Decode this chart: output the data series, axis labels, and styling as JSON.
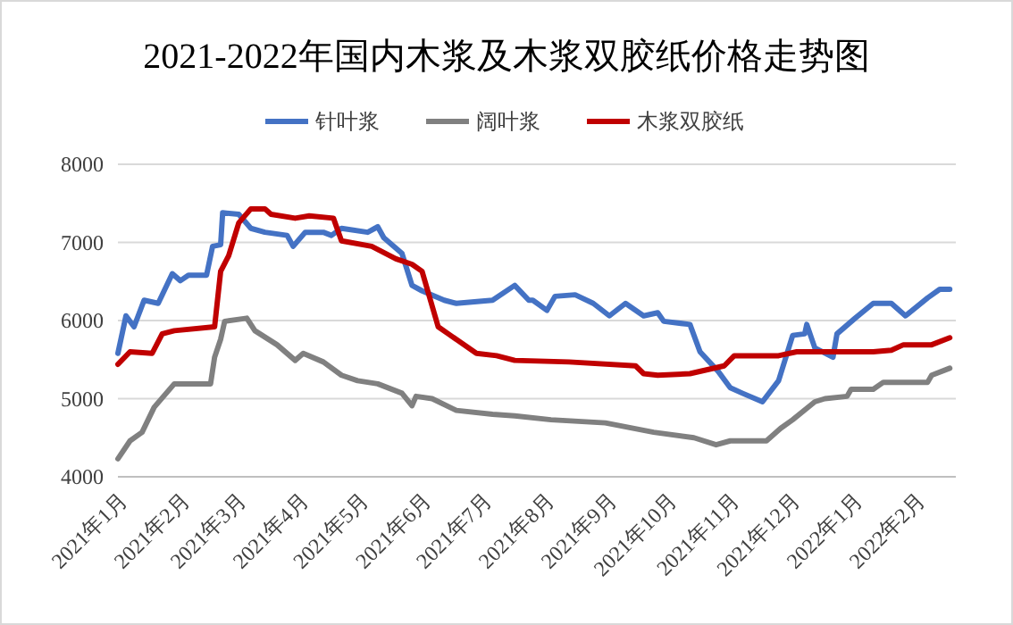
{
  "chart_data": {
    "type": "line",
    "title": "2021-2022年国内木浆及木浆双胶纸价格走势图",
    "legend": "top",
    "grid": "y",
    "marker": "none",
    "line_style": "solid",
    "xlim": [
      "2021-01-01",
      "2022-02-21"
    ],
    "xticks": [
      {
        "value": "2021-01-01",
        "label": "2021年1月"
      },
      {
        "value": "2021-02-01",
        "label": "2021年2月"
      },
      {
        "value": "2021-03-01",
        "label": "2021年3月"
      },
      {
        "value": "2021-04-01",
        "label": "2021年4月"
      },
      {
        "value": "2021-05-01",
        "label": "2021年5月"
      },
      {
        "value": "2021-06-01",
        "label": "2021年6月"
      },
      {
        "value": "2021-07-01",
        "label": "2021年7月"
      },
      {
        "value": "2021-08-01",
        "label": "2021年8月"
      },
      {
        "value": "2021-09-01",
        "label": "2021年9月"
      },
      {
        "value": "2021-10-01",
        "label": "2021年10月"
      },
      {
        "value": "2021-11-01",
        "label": "2021年11月"
      },
      {
        "value": "2021-12-01",
        "label": "2021年12月"
      },
      {
        "value": "2022-01-01",
        "label": "2022年1月"
      },
      {
        "value": "2022-02-01",
        "label": "2022年2月"
      }
    ],
    "ylim": [
      4000,
      8000
    ],
    "yticks": [
      4000,
      5000,
      6000,
      7000,
      8000
    ],
    "series": [
      {
        "name": "针叶浆",
        "color": "#4472c4",
        "x": [
          "2021-01-01",
          "2021-01-05",
          "2021-01-09",
          "2021-01-14",
          "2021-01-21",
          "2021-01-28",
          "2021-02-01",
          "2021-02-05",
          "2021-02-14",
          "2021-02-17",
          "2021-02-21",
          "2021-02-22",
          "2021-03-02",
          "2021-03-08",
          "2021-03-15",
          "2021-03-26",
          "2021-03-29",
          "2021-04-04",
          "2021-04-13",
          "2021-04-17",
          "2021-04-22",
          "2021-05-05",
          "2021-05-10",
          "2021-05-13",
          "2021-05-22",
          "2021-05-27",
          "2021-06-01",
          "2021-06-12",
          "2021-06-18",
          "2021-07-06",
          "2021-07-17",
          "2021-07-24",
          "2021-07-26",
          "2021-08-02",
          "2021-08-06",
          "2021-08-16",
          "2021-08-25",
          "2021-09-02",
          "2021-09-10",
          "2021-09-19",
          "2021-09-26",
          "2021-09-29",
          "2021-10-12",
          "2021-10-17",
          "2021-10-26",
          "2021-11-01",
          "2021-11-07",
          "2021-11-17",
          "2021-11-25",
          "2021-12-02",
          "2021-12-08",
          "2021-12-09",
          "2021-12-13",
          "2021-12-22",
          "2021-12-24",
          "2022-01-02",
          "2022-01-11",
          "2022-01-20",
          "2022-01-27",
          "2022-02-07",
          "2022-02-13",
          "2022-02-18"
        ],
        "values": [
          5580,
          6060,
          5920,
          6260,
          6220,
          6600,
          6510,
          6580,
          6580,
          6950,
          6970,
          7380,
          7360,
          7180,
          7130,
          7090,
          6950,
          7130,
          7130,
          7090,
          7180,
          7130,
          7200,
          7060,
          6860,
          6450,
          6380,
          6260,
          6220,
          6260,
          6450,
          6260,
          6260,
          6130,
          6310,
          6330,
          6220,
          6060,
          6220,
          6060,
          6100,
          5990,
          5950,
          5600,
          5350,
          5140,
          5070,
          4960,
          5230,
          5810,
          5830,
          5950,
          5650,
          5530,
          5830,
          6030,
          6220,
          6220,
          6060,
          6290,
          6400,
          6400
        ]
      },
      {
        "name": "阔叶浆",
        "color": "#808080",
        "x": [
          "2021-01-01",
          "2021-01-07",
          "2021-01-13",
          "2021-01-19",
          "2021-01-25",
          "2021-01-29",
          "2021-02-16",
          "2021-02-18",
          "2021-02-21",
          "2021-02-23",
          "2021-03-06",
          "2021-03-10",
          "2021-03-21",
          "2021-03-30",
          "2021-04-03",
          "2021-04-13",
          "2021-04-22",
          "2021-04-30",
          "2021-05-10",
          "2021-05-22",
          "2021-05-27",
          "2021-05-29",
          "2021-06-06",
          "2021-06-18",
          "2021-07-06",
          "2021-07-17",
          "2021-08-04",
          "2021-08-31",
          "2021-09-24",
          "2021-10-14",
          "2021-10-25",
          "2021-11-01",
          "2021-11-19",
          "2021-11-26",
          "2021-12-02",
          "2021-12-13",
          "2021-12-18",
          "2021-12-29",
          "2021-12-31",
          "2022-01-11",
          "2022-01-16",
          "2022-02-07",
          "2022-02-09",
          "2022-02-18"
        ],
        "values": [
          4230,
          4460,
          4570,
          4890,
          5070,
          5190,
          5190,
          5530,
          5760,
          5990,
          6030,
          5870,
          5690,
          5490,
          5580,
          5470,
          5300,
          5230,
          5190,
          5070,
          4910,
          5030,
          5000,
          4850,
          4800,
          4780,
          4730,
          4690,
          4570,
          4500,
          4410,
          4460,
          4460,
          4620,
          4730,
          4960,
          5000,
          5030,
          5120,
          5120,
          5210,
          5210,
          5300,
          5390
        ]
      },
      {
        "name": "木浆双胶纸",
        "color": "#c00000",
        "x": [
          "2021-01-01",
          "2021-01-07",
          "2021-01-18",
          "2021-01-23",
          "2021-01-29",
          "2021-02-18",
          "2021-02-21",
          "2021-02-25",
          "2021-03-02",
          "2021-03-08",
          "2021-03-15",
          "2021-03-18",
          "2021-03-30",
          "2021-04-06",
          "2021-04-18",
          "2021-04-22",
          "2021-05-07",
          "2021-05-19",
          "2021-05-27",
          "2021-06-01",
          "2021-06-09",
          "2021-06-14",
          "2021-06-28",
          "2021-07-08",
          "2021-07-17",
          "2021-08-13",
          "2021-09-15",
          "2021-09-19",
          "2021-09-26",
          "2021-10-12",
          "2021-10-29",
          "2021-11-03",
          "2021-11-25",
          "2021-12-04",
          "2022-01-11",
          "2022-01-20",
          "2022-01-26",
          "2022-02-09",
          "2022-02-18"
        ],
        "values": [
          5440,
          5600,
          5580,
          5830,
          5870,
          5920,
          6630,
          6830,
          7250,
          7430,
          7430,
          7360,
          7310,
          7340,
          7310,
          7020,
          6950,
          6790,
          6720,
          6630,
          5920,
          5830,
          5580,
          5550,
          5490,
          5470,
          5420,
          5320,
          5300,
          5320,
          5420,
          5550,
          5550,
          5600,
          5600,
          5620,
          5690,
          5690,
          5780
        ]
      }
    ]
  }
}
